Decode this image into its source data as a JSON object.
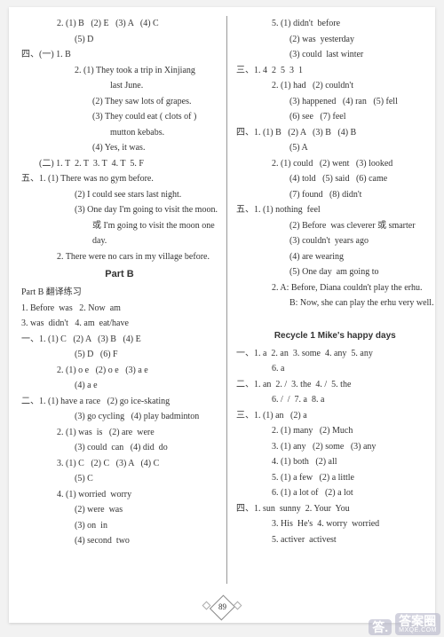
{
  "left": [
    {
      "cls": "i2",
      "t": "2. (1) B   (2) E   (3) A   (4) C"
    },
    {
      "cls": "i3",
      "t": "(5) D"
    },
    {
      "cls": "",
      "t": "四、(一) 1. B"
    },
    {
      "cls": "i3",
      "t": "2. (1) They took a trip in Xinjiang"
    },
    {
      "cls": "i5",
      "t": "last June."
    },
    {
      "cls": "i4",
      "t": "(2) They saw lots of grapes."
    },
    {
      "cls": "i4",
      "t": "(3) They could eat ( clots of )"
    },
    {
      "cls": "i5",
      "t": "mutton kebabs."
    },
    {
      "cls": "i4",
      "t": "(4) Yes, it was."
    },
    {
      "cls": "i1",
      "t": "(二) 1. T  2. T  3. T  4. T  5. F"
    },
    {
      "cls": "",
      "t": "五、1. (1) There was no gym before."
    },
    {
      "cls": "i3",
      "t": "(2) I could see stars last night."
    },
    {
      "cls": "i3",
      "t": "(3) One day I'm going to visit the moon."
    },
    {
      "cls": "i4",
      "t": "或 I'm going to visit the moon one"
    },
    {
      "cls": "i4",
      "t": "day."
    },
    {
      "cls": "i2",
      "t": "2. There were no cars in my village before."
    },
    {
      "cls": "partb",
      "t": "Part B"
    },
    {
      "cls": "",
      "t": "Part B 翻译练习"
    },
    {
      "cls": "",
      "t": "1. Before  was   2. Now  am"
    },
    {
      "cls": "",
      "t": "3. was  didn't   4. am  eat/have"
    },
    {
      "cls": "",
      "t": "一、1. (1) C   (2) A   (3) B   (4) E"
    },
    {
      "cls": "i3",
      "t": "(5) D   (6) F"
    },
    {
      "cls": "i2",
      "t": "2. (1) o e   (2) o e   (3) a e"
    },
    {
      "cls": "i3",
      "t": "(4) a e"
    },
    {
      "cls": "",
      "t": "二、1. (1) have a race   (2) go ice-skating"
    },
    {
      "cls": "i3",
      "t": "(3) go cycling   (4) play badminton"
    },
    {
      "cls": "i2",
      "t": "2. (1) was  is   (2) are  were"
    },
    {
      "cls": "i3",
      "t": "(3) could  can   (4) did  do"
    },
    {
      "cls": "i2",
      "t": "3. (1) C   (2) C   (3) A   (4) C"
    },
    {
      "cls": "i3",
      "t": "(5) C"
    },
    {
      "cls": "i2",
      "t": "4. (1) worried  worry"
    },
    {
      "cls": "i3",
      "t": "(2) were  was"
    },
    {
      "cls": "i3",
      "t": "(3) on  in"
    },
    {
      "cls": "i3",
      "t": "(4) second  two"
    }
  ],
  "right": [
    {
      "cls": "i2",
      "t": "5. (1) didn't  before"
    },
    {
      "cls": "i3",
      "t": "(2) was  yesterday"
    },
    {
      "cls": "i3",
      "t": "(3) could  last winter"
    },
    {
      "cls": "",
      "t": "三、1. 4  2  5  3  1"
    },
    {
      "cls": "i2",
      "t": "2. (1) had   (2) couldn't"
    },
    {
      "cls": "i3",
      "t": "(3) happened   (4) ran   (5) fell"
    },
    {
      "cls": "i3",
      "t": "(6) see   (7) feel"
    },
    {
      "cls": "",
      "t": "四、1. (1) B   (2) A   (3) B   (4) B"
    },
    {
      "cls": "i3",
      "t": "(5) A"
    },
    {
      "cls": "i2",
      "t": "2. (1) could   (2) went   (3) looked"
    },
    {
      "cls": "i3",
      "t": "(4) told   (5) said   (6) came"
    },
    {
      "cls": "i3",
      "t": "(7) found   (8) didn't"
    },
    {
      "cls": "",
      "t": "五、1. (1) nothing  feel"
    },
    {
      "cls": "i3",
      "t": "(2) Before  was cleverer 或 smarter"
    },
    {
      "cls": "i3",
      "t": "(3) couldn't  years ago"
    },
    {
      "cls": "i3",
      "t": "(4) are wearing"
    },
    {
      "cls": "i3",
      "t": "(5) One day  am going to"
    },
    {
      "cls": "i2",
      "t": "2. A: Before, Diana couldn't play the erhu."
    },
    {
      "cls": "i3",
      "t": "B: Now, she can play the erhu very well."
    },
    {
      "cls": "",
      "t": " "
    },
    {
      "cls": "recycle",
      "t": "Recycle 1   Mike's happy days"
    },
    {
      "cls": "",
      "t": "一、1. a  2. an  3. some  4. any  5. any"
    },
    {
      "cls": "i2",
      "t": "6. a"
    },
    {
      "cls": "",
      "t": "二、1. an  2. /  3. the  4. /  5. the"
    },
    {
      "cls": "i2",
      "t": "6. /  /  7. a  8. a"
    },
    {
      "cls": "",
      "t": "三、1. (1) an   (2) a"
    },
    {
      "cls": "i2",
      "t": "2. (1) many   (2) Much"
    },
    {
      "cls": "i2",
      "t": "3. (1) any   (2) some   (3) any"
    },
    {
      "cls": "i2",
      "t": "4. (1) both   (2) all"
    },
    {
      "cls": "i2",
      "t": "5. (1) a few   (2) a little"
    },
    {
      "cls": "i2",
      "t": "6. (1) a lot of   (2) a lot"
    },
    {
      "cls": "",
      "t": "四、1. sun  sunny  2. Your  You"
    },
    {
      "cls": "i2",
      "t": "3. His  He's  4. worry  worried"
    },
    {
      "cls": "i2",
      "t": "5. activer  activest"
    }
  ],
  "pageNum": "89",
  "watermark": {
    "big": "答案圈",
    "sub": "MXQE.COM",
    "logo": "答."
  }
}
